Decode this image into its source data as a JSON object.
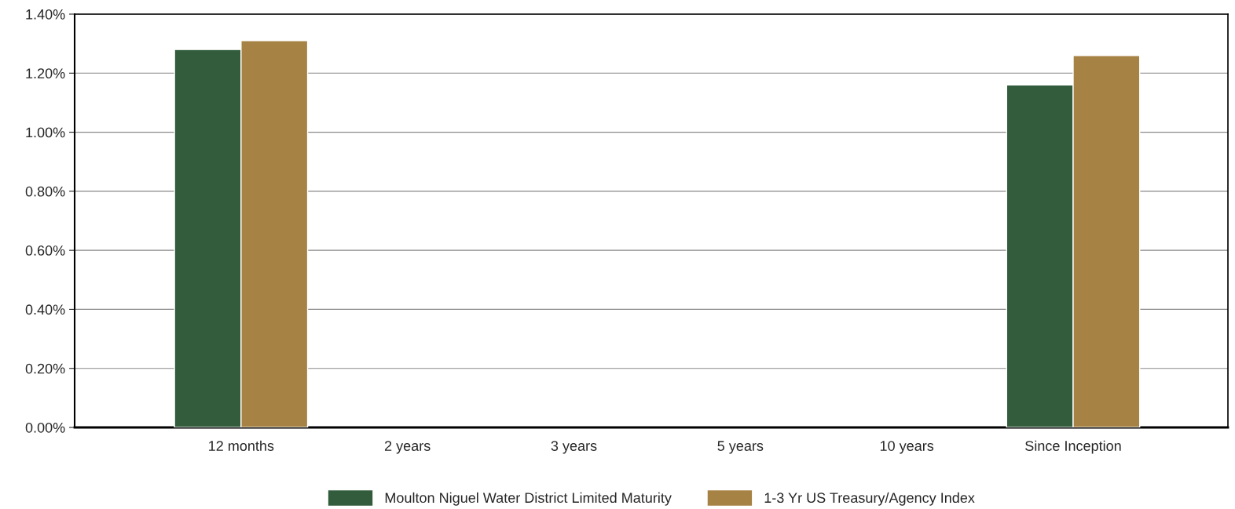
{
  "chart_data": {
    "type": "bar",
    "categories": [
      "12 months",
      "2 years",
      "3 years",
      "5 years",
      "10 years",
      "Since Inception"
    ],
    "series": [
      {
        "name": "Moulton Niguel Water District Limited Maturity",
        "color": "#335c3d",
        "values": [
          1.28,
          null,
          null,
          null,
          null,
          1.16
        ]
      },
      {
        "name": "1-3 Yr US Treasury/Agency Index",
        "color": "#a68244",
        "values": [
          1.31,
          null,
          null,
          null,
          null,
          1.26
        ]
      }
    ],
    "ylim": [
      0,
      1.4
    ],
    "yticks": [
      {
        "value": 0,
        "label": "0.00%"
      },
      {
        "value": 0.2,
        "label": "0.20%"
      },
      {
        "value": 0.4,
        "label": "0.40%"
      },
      {
        "value": 0.6,
        "label": "0.60%"
      },
      {
        "value": 0.8,
        "label": "0.80%"
      },
      {
        "value": 1.0,
        "label": "1.00%"
      },
      {
        "value": 1.2,
        "label": "1.20%"
      },
      {
        "value": 1.4,
        "label": "1.40%"
      }
    ],
    "grid": "y",
    "legend": "bottom"
  }
}
